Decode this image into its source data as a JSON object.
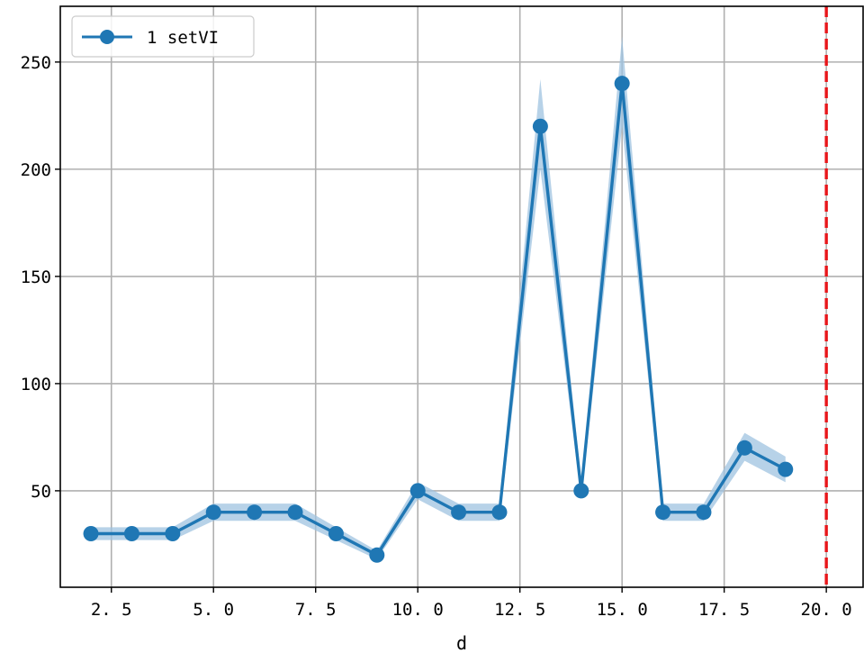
{
  "chart_data": {
    "type": "line",
    "title": "",
    "xlabel": "d",
    "ylabel": "",
    "xlim": [
      1.25,
      20.9
    ],
    "ylim": [
      5,
      276
    ],
    "grid": true,
    "legend_position": "top-left",
    "x_ticks": [
      {
        "value": 2.5,
        "label": "2. 5"
      },
      {
        "value": 5.0,
        "label": "5. 0"
      },
      {
        "value": 7.5,
        "label": "7. 5"
      },
      {
        "value": 10.0,
        "label": "10. 0"
      },
      {
        "value": 12.5,
        "label": "12. 5"
      },
      {
        "value": 15.0,
        "label": "15. 0"
      },
      {
        "value": 17.5,
        "label": "17. 5"
      },
      {
        "value": 20.0,
        "label": "20. 0"
      }
    ],
    "y_ticks": [
      {
        "value": 50,
        "label": "50"
      },
      {
        "value": 100,
        "label": "100"
      },
      {
        "value": 150,
        "label": "150"
      },
      {
        "value": 200,
        "label": "200"
      },
      {
        "value": 250,
        "label": "250"
      }
    ],
    "series": [
      {
        "name": "1 setVI",
        "color": "#1f77b4",
        "band_color": "#9fc3e0",
        "x": [
          2,
          3,
          4,
          5,
          6,
          7,
          8,
          9,
          10,
          11,
          12,
          13,
          14,
          15,
          16,
          17,
          18,
          19
        ],
        "values": [
          30,
          30,
          30,
          40,
          40,
          40,
          30,
          20,
          50,
          40,
          40,
          220,
          50,
          240,
          40,
          40,
          70,
          60
        ],
        "band_lower": [
          27,
          27,
          27,
          36,
          36,
          36,
          27,
          18,
          46,
          36,
          36,
          200,
          46,
          220,
          36,
          36,
          64,
          54
        ],
        "band_upper": [
          33,
          33,
          33,
          44,
          44,
          44,
          33,
          22,
          54,
          44,
          44,
          242,
          54,
          262,
          44,
          44,
          77,
          66
        ]
      }
    ],
    "reference_line": {
      "x": 20.0,
      "color": "#e8161a",
      "style": "dashed"
    }
  }
}
